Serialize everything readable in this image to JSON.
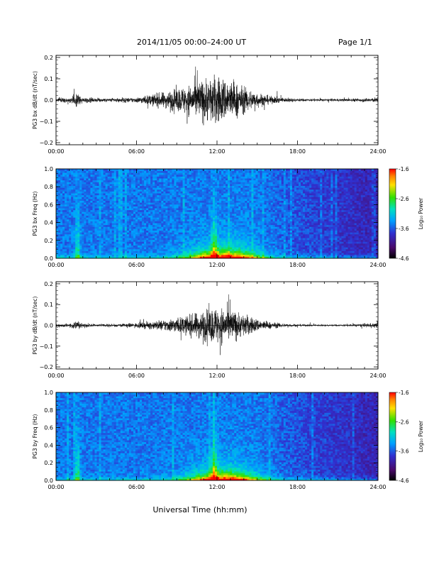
{
  "header": {
    "date_range": "2014/11/05   00:00–24:00 UT",
    "page": "Page 1/1"
  },
  "footer": {
    "xlabel": "Universal Time (hh:mm)"
  },
  "chart_data": [
    {
      "type": "line",
      "ylabel": "PG3 bx dB/dt (nT/sec)",
      "xlabel": "",
      "x_ticks": [
        "00:00",
        "06:00",
        "12:00",
        "18:00",
        "24:00"
      ],
      "x_range_hours": [
        0,
        24
      ],
      "y_ticks": [
        -0.2,
        -0.1,
        0.0,
        0.1,
        0.2
      ],
      "y_tick_labels": [
        "−0.2",
        "−0.1",
        "0.0",
        "0.1",
        "0.2"
      ],
      "ylim": [
        -0.21,
        0.21
      ],
      "envelope": {
        "hours": [
          0,
          1,
          1.5,
          2,
          3,
          4,
          5,
          6,
          7,
          8,
          9,
          10,
          11,
          12,
          13,
          14,
          15,
          16,
          17,
          18,
          19,
          20,
          21,
          22,
          23,
          24
        ],
        "amplitude": [
          0.015,
          0.02,
          0.05,
          0.025,
          0.015,
          0.015,
          0.018,
          0.02,
          0.04,
          0.06,
          0.09,
          0.12,
          0.17,
          0.19,
          0.16,
          0.1,
          0.06,
          0.03,
          0.018,
          0.012,
          0.01,
          0.01,
          0.01,
          0.012,
          0.015,
          0.02
        ]
      },
      "color": "#000000"
    },
    {
      "type": "heatmap",
      "ylabel": "PG3 bx Freq (Hz)",
      "xlabel": "",
      "x_ticks": [
        "00:00",
        "06:00",
        "12:00",
        "18:00",
        "24:00"
      ],
      "y_ticks": [
        0.0,
        0.2,
        0.4,
        0.6,
        0.8,
        1.0
      ],
      "y_tick_labels": [
        "0.0",
        "0.2",
        "0.4",
        "0.6",
        "0.8",
        "1.0"
      ],
      "ylim": [
        0,
        1.0
      ],
      "colorbar": {
        "label": "Log₁₀ Power",
        "ticks": [
          "-1.6",
          "-2.6",
          "-3.6",
          "-4.6"
        ],
        "range": [
          -4.6,
          -1.6
        ]
      }
    },
    {
      "type": "line",
      "ylabel": "PG3 by dB/dt (nT/sec)",
      "xlabel": "",
      "x_ticks": [
        "00:00",
        "06:00",
        "12:00",
        "18:00",
        "24:00"
      ],
      "x_range_hours": [
        0,
        24
      ],
      "y_ticks": [
        -0.2,
        -0.1,
        0.0,
        0.1,
        0.2
      ],
      "y_tick_labels": [
        "−0.2",
        "−0.1",
        "0.0",
        "0.1",
        "0.2"
      ],
      "ylim": [
        -0.21,
        0.21
      ],
      "envelope": {
        "hours": [
          0,
          1,
          1.5,
          2,
          3,
          4,
          5,
          6,
          7,
          8,
          9,
          10,
          11,
          12,
          13,
          14,
          15,
          16,
          17,
          18,
          19,
          20,
          21,
          22,
          23,
          24
        ],
        "amplitude": [
          0.012,
          0.015,
          0.04,
          0.02,
          0.012,
          0.012,
          0.014,
          0.018,
          0.03,
          0.045,
          0.06,
          0.08,
          0.12,
          0.15,
          0.13,
          0.09,
          0.05,
          0.025,
          0.015,
          0.01,
          0.008,
          0.008,
          0.008,
          0.01,
          0.014,
          0.02
        ]
      },
      "color": "#000000"
    },
    {
      "type": "heatmap",
      "ylabel": "PG3 by Freq (Hz)",
      "xlabel": "",
      "x_ticks": [
        "00:00",
        "06:00",
        "12:00",
        "18:00",
        "24:00"
      ],
      "y_ticks": [
        0.0,
        0.2,
        0.4,
        0.6,
        0.8,
        1.0
      ],
      "y_tick_labels": [
        "0.0",
        "0.2",
        "0.4",
        "0.6",
        "0.8",
        "1.0"
      ],
      "ylim": [
        0,
        1.0
      ],
      "colorbar": {
        "label": "Log₁₀ Power",
        "ticks": [
          "-1.6",
          "-2.6",
          "-3.6",
          "-4.6"
        ],
        "range": [
          -4.6,
          -1.6
        ]
      }
    }
  ]
}
